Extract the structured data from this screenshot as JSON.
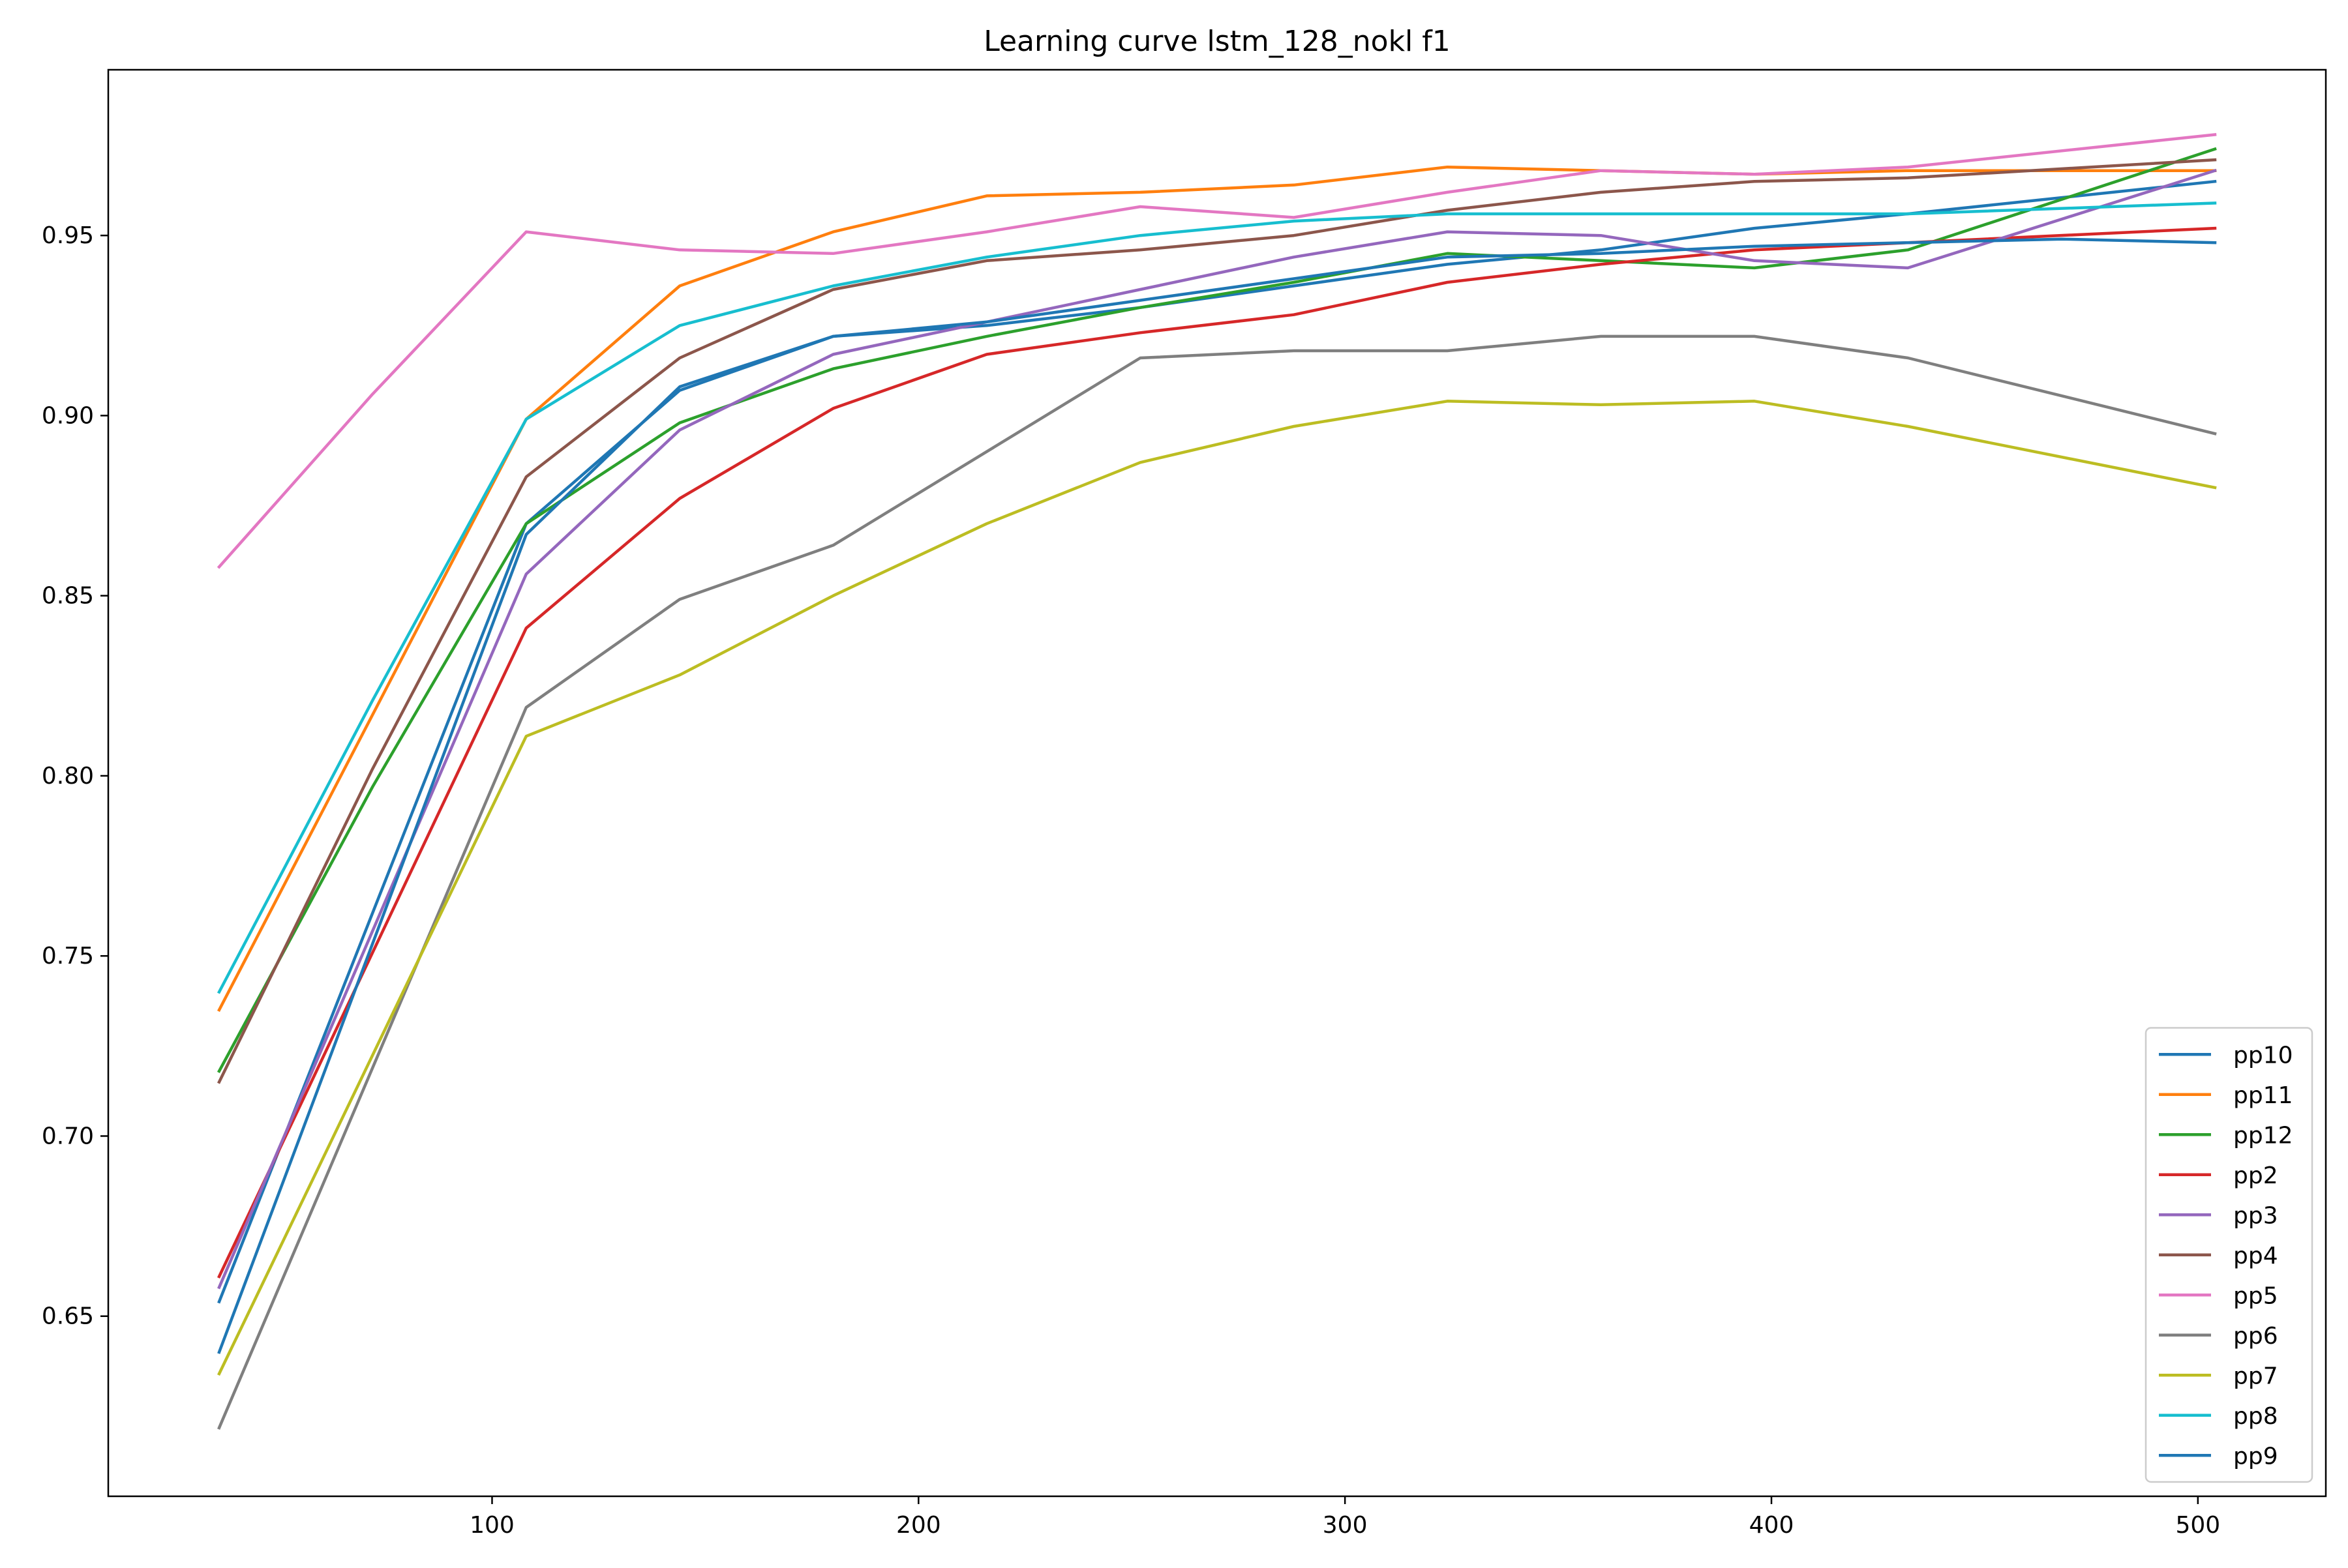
{
  "chart_data": {
    "type": "line",
    "title": "Learning curve lstm_128_nokl f1",
    "xlabel": "",
    "ylabel": "",
    "xlim": [
      10,
      530
    ],
    "ylim": [
      0.6,
      0.996
    ],
    "xticks": [
      100,
      200,
      300,
      400,
      500
    ],
    "yticks": [
      0.65,
      0.7,
      0.75,
      0.8,
      0.85,
      0.9,
      0.95
    ],
    "xtick_labels": [
      "100",
      "200",
      "300",
      "400",
      "500"
    ],
    "ytick_labels": [
      "0.65",
      "0.70",
      "0.75",
      "0.80",
      "0.85",
      "0.90",
      "0.95"
    ],
    "grid": false,
    "legend_position": "lower-right",
    "series": [
      {
        "name": "pp10",
        "color": "#1f77b4",
        "points": [
          [
            36,
            0.654
          ],
          [
            108,
            0.87
          ],
          [
            144,
            0.907
          ],
          [
            180,
            0.922
          ],
          [
            216,
            0.925
          ],
          [
            252,
            0.93
          ],
          [
            288,
            0.936
          ],
          [
            324,
            0.942
          ],
          [
            360,
            0.946
          ],
          [
            396,
            0.952
          ],
          [
            432,
            0.956
          ],
          [
            504,
            0.965
          ]
        ]
      },
      {
        "name": "pp11",
        "color": "#ff7f0e",
        "points": [
          [
            36,
            0.735
          ],
          [
            108,
            0.899
          ],
          [
            144,
            0.936
          ],
          [
            180,
            0.951
          ],
          [
            216,
            0.961
          ],
          [
            252,
            0.962
          ],
          [
            288,
            0.964
          ],
          [
            324,
            0.969
          ],
          [
            360,
            0.968
          ],
          [
            396,
            0.967
          ],
          [
            432,
            0.968
          ],
          [
            504,
            0.968
          ]
        ]
      },
      {
        "name": "pp12",
        "color": "#2ca02c",
        "points": [
          [
            36,
            0.718
          ],
          [
            72,
            0.797
          ],
          [
            108,
            0.87
          ],
          [
            144,
            0.898
          ],
          [
            180,
            0.913
          ],
          [
            216,
            0.922
          ],
          [
            252,
            0.93
          ],
          [
            288,
            0.937
          ],
          [
            324,
            0.945
          ],
          [
            360,
            0.943
          ],
          [
            396,
            0.941
          ],
          [
            432,
            0.946
          ],
          [
            504,
            0.974
          ]
        ]
      },
      {
        "name": "pp2",
        "color": "#d62728",
        "points": [
          [
            36,
            0.661
          ],
          [
            108,
            0.841
          ],
          [
            144,
            0.877
          ],
          [
            180,
            0.902
          ],
          [
            216,
            0.917
          ],
          [
            252,
            0.923
          ],
          [
            288,
            0.928
          ],
          [
            324,
            0.937
          ],
          [
            360,
            0.942
          ],
          [
            396,
            0.946
          ],
          [
            432,
            0.948
          ],
          [
            504,
            0.952
          ]
        ]
      },
      {
        "name": "pp3",
        "color": "#9467bd",
        "points": [
          [
            36,
            0.658
          ],
          [
            108,
            0.856
          ],
          [
            144,
            0.896
          ],
          [
            180,
            0.917
          ],
          [
            216,
            0.926
          ],
          [
            252,
            0.935
          ],
          [
            288,
            0.944
          ],
          [
            324,
            0.951
          ],
          [
            360,
            0.95
          ],
          [
            396,
            0.943
          ],
          [
            432,
            0.941
          ],
          [
            504,
            0.968
          ]
        ]
      },
      {
        "name": "pp4",
        "color": "#8c564b",
        "points": [
          [
            36,
            0.715
          ],
          [
            72,
            0.802
          ],
          [
            108,
            0.883
          ],
          [
            144,
            0.916
          ],
          [
            180,
            0.935
          ],
          [
            216,
            0.943
          ],
          [
            252,
            0.946
          ],
          [
            288,
            0.95
          ],
          [
            324,
            0.957
          ],
          [
            360,
            0.962
          ],
          [
            396,
            0.965
          ],
          [
            432,
            0.966
          ],
          [
            504,
            0.971
          ]
        ]
      },
      {
        "name": "pp5",
        "color": "#e377c2",
        "points": [
          [
            36,
            0.858
          ],
          [
            72,
            0.906
          ],
          [
            108,
            0.951
          ],
          [
            144,
            0.946
          ],
          [
            180,
            0.945
          ],
          [
            216,
            0.951
          ],
          [
            252,
            0.958
          ],
          [
            288,
            0.955
          ],
          [
            324,
            0.962
          ],
          [
            360,
            0.968
          ],
          [
            396,
            0.967
          ],
          [
            432,
            0.969
          ],
          [
            504,
            0.978
          ]
        ]
      },
      {
        "name": "pp6",
        "color": "#7f7f7f",
        "points": [
          [
            36,
            0.619
          ],
          [
            108,
            0.819
          ],
          [
            144,
            0.849
          ],
          [
            180,
            0.864
          ],
          [
            216,
            0.89
          ],
          [
            252,
            0.916
          ],
          [
            288,
            0.918
          ],
          [
            324,
            0.918
          ],
          [
            360,
            0.922
          ],
          [
            396,
            0.922
          ],
          [
            432,
            0.916
          ],
          [
            504,
            0.895
          ]
        ]
      },
      {
        "name": "pp7",
        "color": "#bcbd22",
        "points": [
          [
            36,
            0.634
          ],
          [
            108,
            0.811
          ],
          [
            144,
            0.828
          ],
          [
            180,
            0.85
          ],
          [
            216,
            0.87
          ],
          [
            252,
            0.887
          ],
          [
            288,
            0.897
          ],
          [
            324,
            0.904
          ],
          [
            360,
            0.903
          ],
          [
            396,
            0.904
          ],
          [
            432,
            0.897
          ],
          [
            504,
            0.88
          ]
        ]
      },
      {
        "name": "pp8",
        "color": "#17becf",
        "points": [
          [
            36,
            0.74
          ],
          [
            72,
            0.821
          ],
          [
            108,
            0.899
          ],
          [
            144,
            0.925
          ],
          [
            180,
            0.936
          ],
          [
            216,
            0.944
          ],
          [
            252,
            0.95
          ],
          [
            288,
            0.954
          ],
          [
            324,
            0.956
          ],
          [
            360,
            0.956
          ],
          [
            396,
            0.956
          ],
          [
            432,
            0.956
          ],
          [
            504,
            0.959
          ]
        ]
      },
      {
        "name": "pp9",
        "color": "#1f77b4",
        "points": [
          [
            36,
            0.64
          ],
          [
            108,
            0.867
          ],
          [
            144,
            0.908
          ],
          [
            180,
            0.922
          ],
          [
            216,
            0.926
          ],
          [
            252,
            0.932
          ],
          [
            288,
            0.938
          ],
          [
            324,
            0.944
          ],
          [
            360,
            0.945
          ],
          [
            396,
            0.947
          ],
          [
            432,
            0.948
          ],
          [
            468,
            0.949
          ],
          [
            504,
            0.948
          ]
        ]
      }
    ]
  }
}
